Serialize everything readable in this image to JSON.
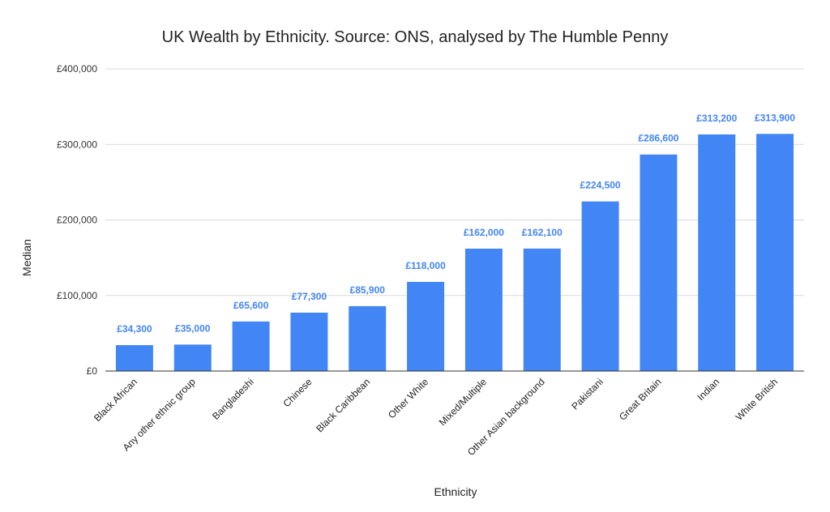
{
  "chart_data": {
    "type": "bar",
    "title": "UK Wealth by Ethnicity. Source: ONS, analysed by The Humble Penny",
    "xlabel": "Ethnicity",
    "ylabel": "Median",
    "ylim": [
      0,
      400000
    ],
    "yticks": [
      0,
      100000,
      200000,
      300000,
      400000
    ],
    "ytick_labels": [
      "£0",
      "£100,000",
      "£200,000",
      "£300,000",
      "£400,000"
    ],
    "grid": true,
    "legend": "none",
    "color": "#4285f4",
    "categories": [
      "Black African",
      "Any other ethnic group",
      "Bangladeshi",
      "Chinese",
      "Black Caribbean",
      "Other White",
      "Mixed/Multiple",
      "Other Asian background",
      "Pakistani",
      "Great Britain",
      "Indian",
      "White British"
    ],
    "values": [
      34300,
      35000,
      65600,
      77300,
      85900,
      118000,
      162000,
      162100,
      224500,
      286600,
      313200,
      313900
    ],
    "data_labels": [
      "£34,300",
      "£35,000",
      "£65,600",
      "£77,300",
      "£85,900",
      "£118,000",
      "£162,000",
      "£162,100",
      "£224,500",
      "£286,600",
      "£313,200",
      "£313,900"
    ]
  }
}
